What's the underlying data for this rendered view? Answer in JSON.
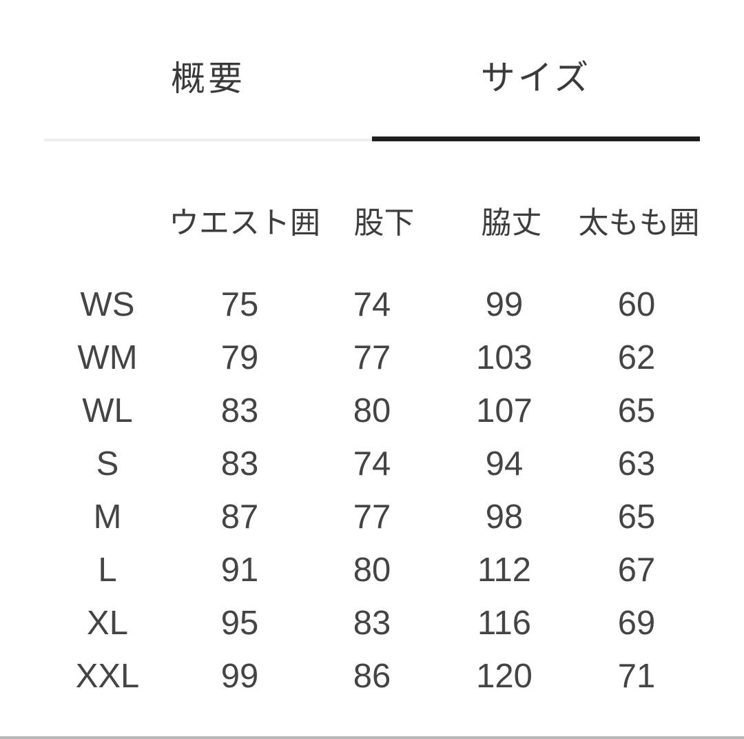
{
  "tabs": [
    {
      "label": "概要",
      "active": false
    },
    {
      "label": "サイズ",
      "active": true
    }
  ],
  "size_table": {
    "columns": [
      "ウエスト囲",
      "股下",
      "脇丈",
      "太もも囲"
    ],
    "rows": [
      {
        "size": "WS",
        "values": [
          "75",
          "74",
          "99",
          "60"
        ]
      },
      {
        "size": "WM",
        "values": [
          "79",
          "77",
          "103",
          "62"
        ]
      },
      {
        "size": "WL",
        "values": [
          "83",
          "80",
          "107",
          "65"
        ]
      },
      {
        "size": "S",
        "values": [
          "83",
          "74",
          "94",
          "63"
        ]
      },
      {
        "size": "M",
        "values": [
          "87",
          "77",
          "98",
          "65"
        ]
      },
      {
        "size": "L",
        "values": [
          "91",
          "80",
          "112",
          "67"
        ]
      },
      {
        "size": "XL",
        "values": [
          "95",
          "83",
          "116",
          "69"
        ]
      },
      {
        "size": "XXL",
        "values": [
          "99",
          "86",
          "120",
          "71"
        ]
      }
    ]
  },
  "colors": {
    "background": "#ffffff",
    "text": "#424242",
    "active_tab_underline": "#1f1f1f",
    "inactive_tab_underline": "#ededed"
  }
}
